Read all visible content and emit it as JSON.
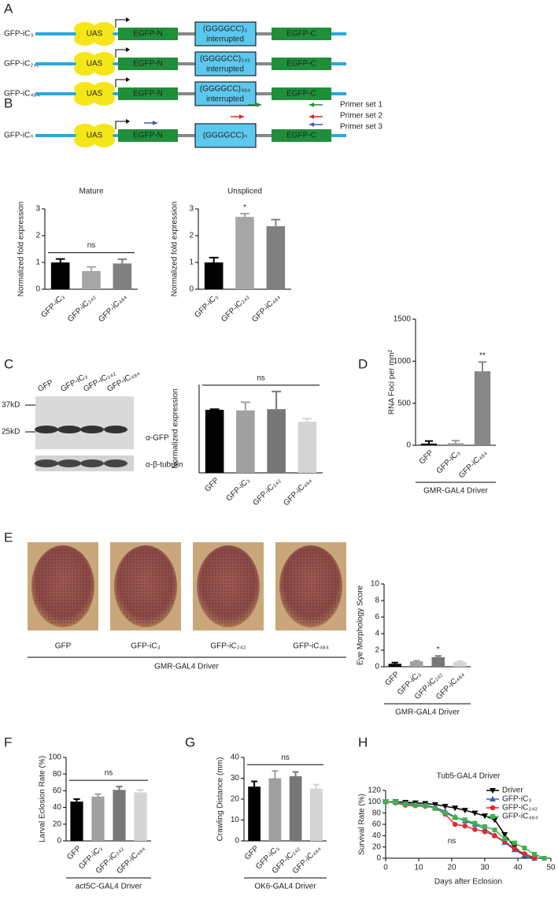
{
  "panel_letters": [
    "A",
    "B",
    "C",
    "D",
    "E",
    "F",
    "G",
    "H"
  ],
  "construct_parts": {
    "uas": "UAS",
    "egfp_n": "EGFP-N",
    "egfp_c": "EGFP-C",
    "interrupted": "interrupted"
  },
  "panel_a": [
    {
      "name": "GFP-iC₃",
      "repeat": "(GGGGCC)₃"
    },
    {
      "name": "GFP-iC₂₄₂",
      "repeat": "(GGGGCC)₂₄₂"
    },
    {
      "name": "GFP-iC₄₈₄",
      "repeat": "(GGGGCC)₄₈₄"
    }
  ],
  "panel_b": {
    "name": "GFP-iCₙ",
    "repeat": "(GGGGCC)ₙ",
    "primers": [
      "Primer set 1",
      "Primer set 2",
      "Primer set 3"
    ]
  },
  "blot": {
    "lanes": [
      "GFP",
      "GFP-iC₃",
      "GFP-iC₂₄₂",
      "GFP-iC₄₈₄"
    ],
    "markers": [
      "37kD",
      "25kD"
    ],
    "antibodies": [
      "α-GFP",
      "α-β-tubulin"
    ]
  },
  "eye_images": {
    "labels": [
      "GFP",
      "GFP-iC₃",
      "GFP-iC₂₄₂",
      "GFP-iC₄₈₄"
    ],
    "driver": "GMR-GAL4 Driver"
  },
  "chart_data": [
    {
      "type": "bar",
      "title": "Mature",
      "ylabel": "Normalized fold expression",
      "categories": [
        "GFP-iC₃",
        "GFP-iC₂₄₂",
        "GFP-iC₄₈₄"
      ],
      "values": [
        1.0,
        0.68,
        0.96
      ],
      "errors": [
        0.13,
        0.15,
        0.16
      ],
      "colors": [
        "#000000",
        "#a6a6a8",
        "#808080"
      ],
      "ylim": [
        0,
        3
      ],
      "yticks": [
        0,
        1,
        2,
        3
      ],
      "annotation": "ns"
    },
    {
      "type": "bar",
      "title": "Unspliced",
      "ylabel": "Normalized fold expression",
      "categories": [
        "GFP-iC₃",
        "GFP-iC₂₄₂",
        "GFP-iC₄₈₄"
      ],
      "values": [
        1.0,
        2.7,
        2.35
      ],
      "errors": [
        0.18,
        0.12,
        0.25
      ],
      "colors": [
        "#000000",
        "#a6a6a8",
        "#808080"
      ],
      "ylim": [
        0,
        3
      ],
      "yticks": [
        0,
        1,
        2,
        3
      ],
      "annotation": "*"
    },
    {
      "type": "bar",
      "ylabel": "Normalized expression",
      "categories": [
        "GFP",
        "GFP-iC₃",
        "GFP-iC₂₄₂",
        "GFP-iC₄₈₄"
      ],
      "values": [
        1.0,
        0.99,
        1.01,
        0.81
      ],
      "errors": [
        0.01,
        0.13,
        0.28,
        0.05
      ],
      "colors": [
        "#000000",
        "#a0a0a0",
        "#777777",
        "#d4d4d4"
      ],
      "ylim": [
        0,
        1.4
      ],
      "yticks": [],
      "annotation": "ns"
    },
    {
      "type": "bar",
      "ylabel": "RNA Foci per mm²",
      "categories": [
        "GFP",
        "GFP-iC₃",
        "GFP-iC₄₈₄"
      ],
      "values": [
        20,
        25,
        880
      ],
      "errors": [
        30,
        30,
        110
      ],
      "colors": [
        "#000000",
        "#a0a0a0",
        "#888888"
      ],
      "ylim": [
        0,
        1500
      ],
      "yticks": [
        0,
        500,
        1000,
        1500
      ],
      "annotation": "**",
      "xlabel": "GMR-GAL4 Driver"
    },
    {
      "type": "bar",
      "ylabel": "Eye Morphology Score",
      "categories": [
        "GFP",
        "GFP-iC₃",
        "GFP-iC₂₄₂",
        "GFP-iC₄₈₄"
      ],
      "values": [
        0.35,
        0.65,
        1.15,
        0.6
      ],
      "errors": [
        0.15,
        0.08,
        0.15,
        0.08
      ],
      "colors": [
        "#000000",
        "#a0a0a0",
        "#777777",
        "#d4d4d4"
      ],
      "ylim": [
        0,
        10
      ],
      "yticks": [
        0,
        2,
        4,
        6,
        8,
        10
      ],
      "annotation": "*",
      "xlabel": "GMR-GAL4 Driver"
    },
    {
      "type": "bar",
      "ylabel": "Larval Eclosion Rate (%)",
      "categories": [
        "GFP",
        "GFP-iC₃",
        "GFP-iC₂₄₂",
        "GFP-iC₄₈₄"
      ],
      "values": [
        47,
        53,
        61,
        58
      ],
      "errors": [
        3,
        3,
        4,
        3
      ],
      "colors": [
        "#000000",
        "#a0a0a0",
        "#777777",
        "#d4d4d4"
      ],
      "ylim": [
        0,
        100
      ],
      "yticks": [
        0,
        20,
        40,
        60,
        80,
        100
      ],
      "annotation": "ns",
      "xlabel": "act5C-GAL4 Driver"
    },
    {
      "type": "bar",
      "ylabel": "Crawling Distance (mm)",
      "categories": [
        "GFP",
        "GFP-iC₃",
        "GFP-iC₂₄₂",
        "GFP-iC₄₈₄"
      ],
      "values": [
        26,
        30,
        31,
        25
      ],
      "errors": [
        2.5,
        3.5,
        2,
        2
      ],
      "colors": [
        "#000000",
        "#a0a0a0",
        "#777777",
        "#d4d4d4"
      ],
      "ylim": [
        0,
        40
      ],
      "yticks": [
        0,
        10,
        20,
        30,
        40
      ],
      "annotation": "ns",
      "xlabel": "OK6-GAL4 Driver"
    },
    {
      "type": "line",
      "title": "Tub5-GAL4 Driver",
      "xlabel": "Days after Eclosion",
      "ylabel": "Survival Rate (%)",
      "x": [
        0,
        3,
        6,
        9,
        12,
        15,
        18,
        21,
        24,
        27,
        30,
        33,
        36,
        39,
        42,
        45,
        48
      ],
      "xlim": [
        0,
        50
      ],
      "xticks": [
        0,
        10,
        20,
        30,
        40,
        50
      ],
      "ylim": [
        0,
        120
      ],
      "yticks": [
        0,
        20,
        40,
        60,
        80,
        100,
        120
      ],
      "annotation": "ns",
      "legend": "top-right",
      "series": [
        {
          "name": "Driver",
          "color": "#000000",
          "marker": "triangle-down",
          "values": [
            100,
            100,
            99,
            98,
            97,
            95,
            92,
            89,
            85,
            80,
            75,
            68,
            42,
            20,
            5,
            0,
            null
          ]
        },
        {
          "name": "GFP-iC₃",
          "color": "#3a5fb0",
          "marker": "triangle-up",
          "values": [
            100,
            99,
            97,
            95,
            94,
            90,
            83,
            73,
            66,
            60,
            52,
            40,
            28,
            15,
            5,
            0,
            null
          ]
        },
        {
          "name": "GFP-iC₂₄₂",
          "color": "#e8262a",
          "marker": "circle",
          "values": [
            100,
            98,
            94,
            93,
            92,
            89,
            78,
            60,
            57,
            51,
            47,
            40,
            30,
            17,
            8,
            1,
            null
          ]
        },
        {
          "name": "GFP-iC₄₈₄",
          "color": "#3cb34a",
          "marker": "square",
          "values": [
            100,
            99,
            96,
            94,
            93,
            88,
            80,
            72,
            68,
            62,
            56,
            50,
            35,
            27,
            18,
            7,
            0
          ]
        }
      ]
    }
  ]
}
